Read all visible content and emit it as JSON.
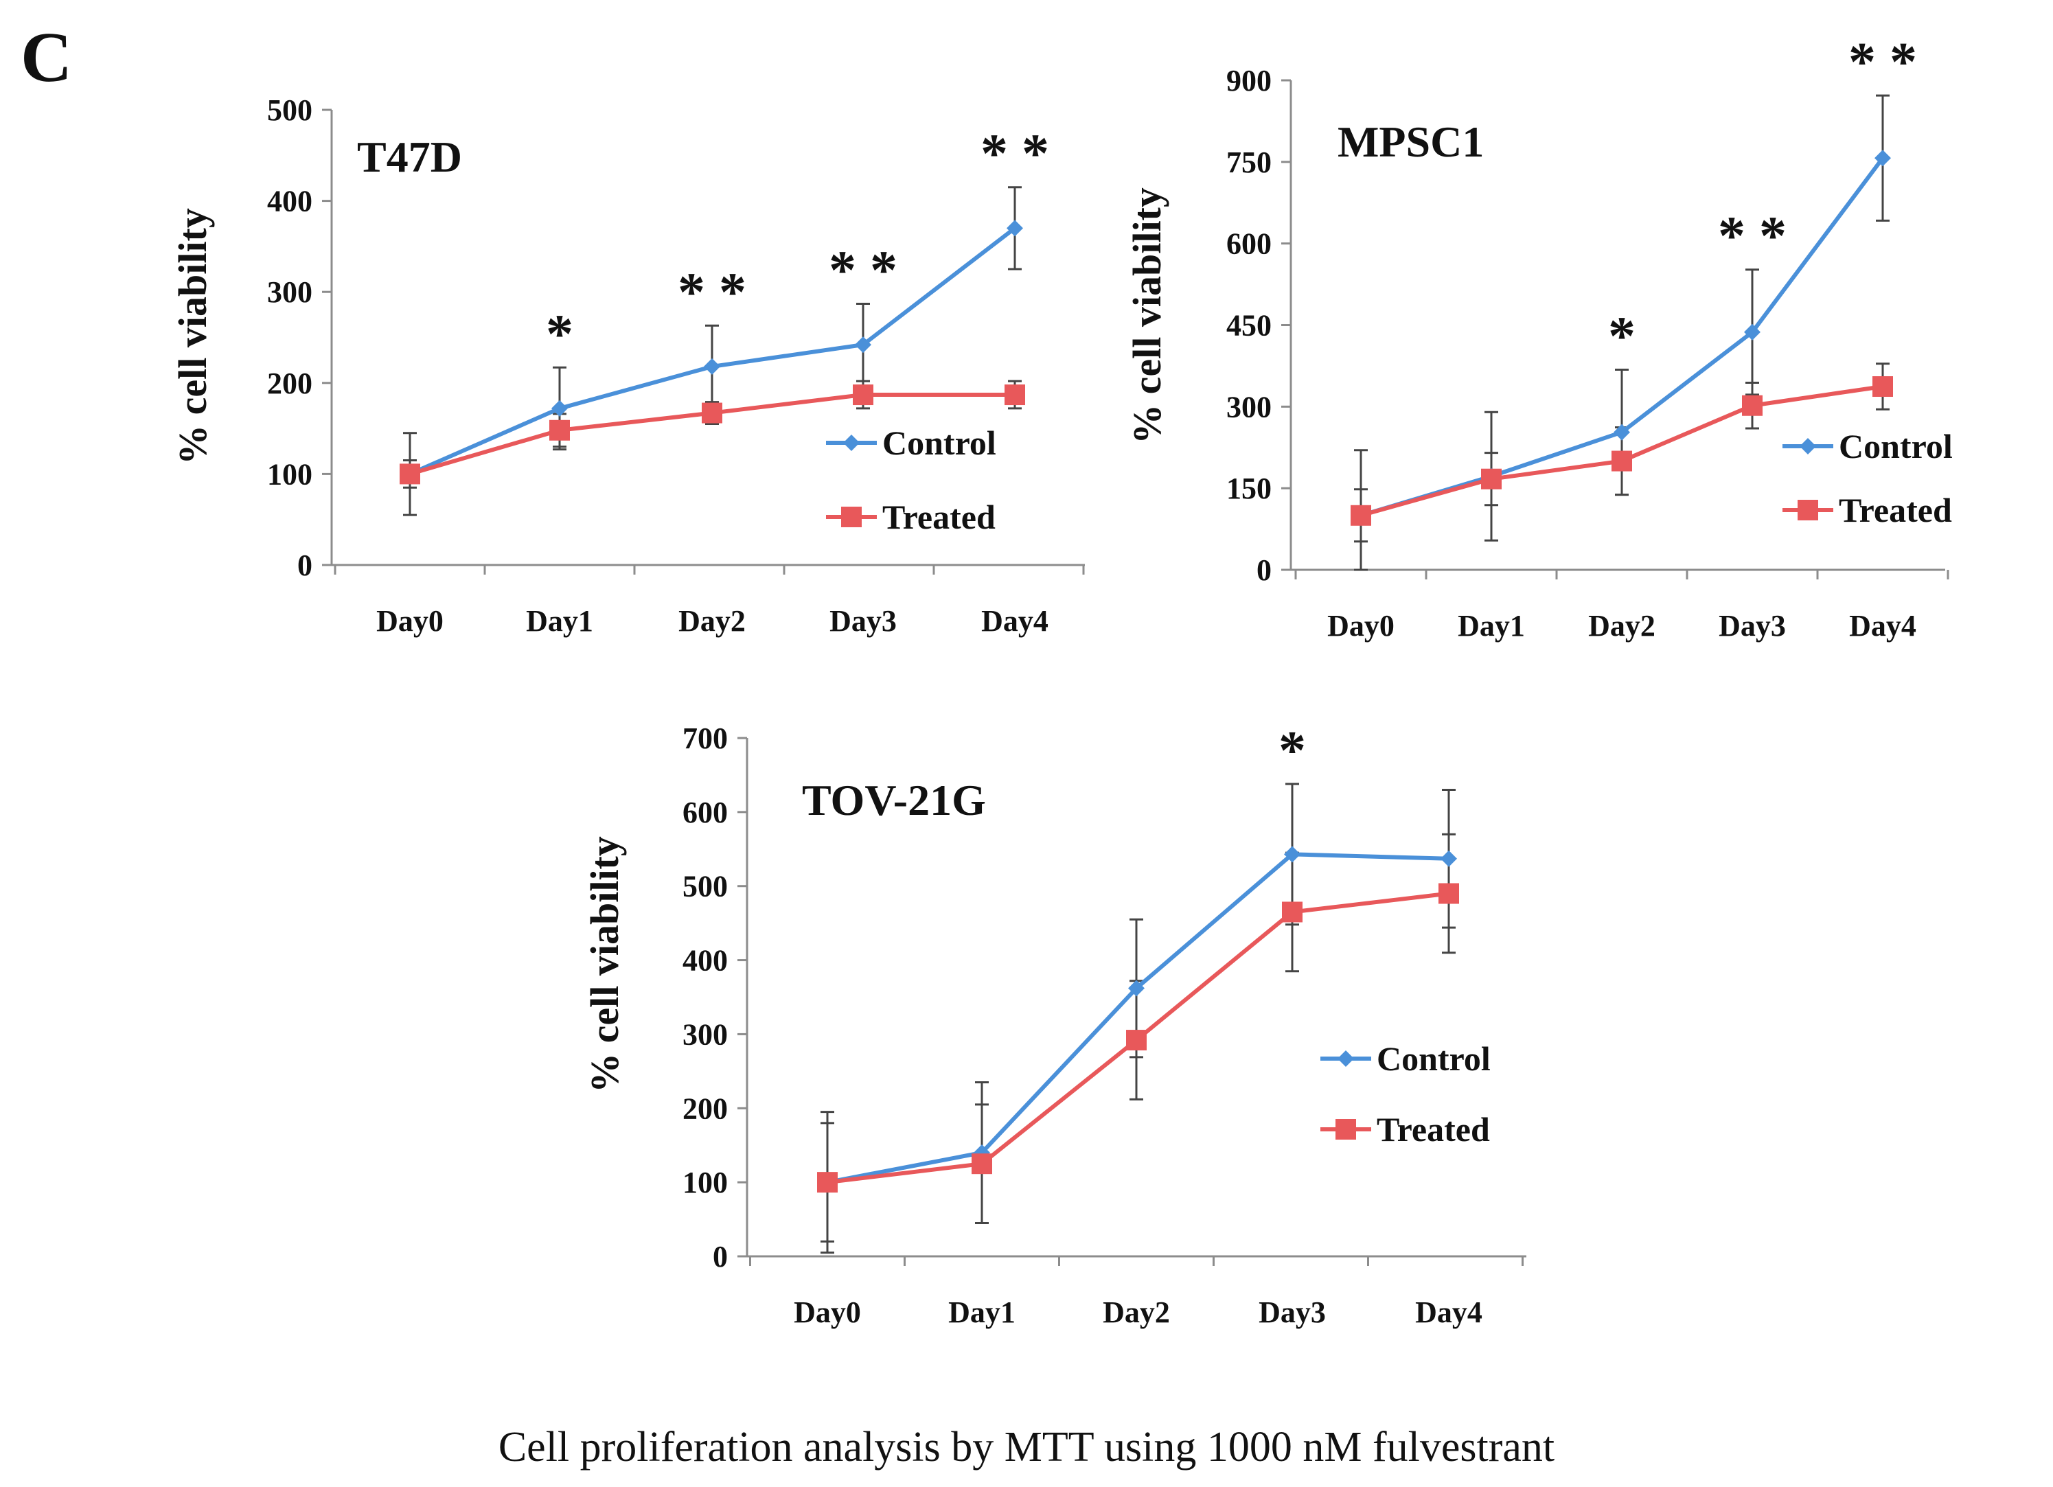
{
  "figure_label": "C",
  "caption": "Cell proliferation analysis by MTT using 1000 nM fulvestrant",
  "colors": {
    "control": "#4A90D9",
    "treated": "#E8585A",
    "axis": "#8c8c8c",
    "errorbar": "#444444",
    "text": "#111111"
  },
  "chart_data": [
    {
      "type": "line",
      "title": "T47D",
      "xlabel": "",
      "ylabel": "% cell viability",
      "categories": [
        "Day0",
        "Day1",
        "Day2",
        "Day3",
        "Day4"
      ],
      "ylim": [
        0,
        500
      ],
      "yticks": [
        0,
        100,
        200,
        300,
        400,
        500
      ],
      "ytick_labels": [
        "0",
        "100",
        "200",
        "300",
        "400",
        "500"
      ],
      "legend_position": "right",
      "series": [
        {
          "name": "Control",
          "marker": "diamond",
          "values": [
            100,
            172,
            218,
            242,
            370
          ],
          "errors": [
            45,
            45,
            45,
            45,
            45
          ]
        },
        {
          "name": "Treated",
          "marker": "square",
          "values": [
            100,
            148,
            167,
            187,
            187
          ],
          "errors": [
            15,
            18,
            12,
            15,
            15
          ]
        }
      ],
      "significance": [
        "",
        "*",
        "* *",
        "* *",
        "* *"
      ]
    },
    {
      "type": "line",
      "title": "MPSC1",
      "xlabel": "",
      "ylabel": "% cell viability",
      "categories": [
        "Day0",
        "Day1",
        "Day2",
        "Day3",
        "Day4"
      ],
      "ylim": [
        0,
        900
      ],
      "yticks": [
        0,
        150,
        300,
        450,
        600,
        750,
        900
      ],
      "ytick_labels": [
        "0",
        "150",
        "300",
        "450",
        "600",
        "750",
        "900"
      ],
      "legend_position": "right",
      "series": [
        {
          "name": "Control",
          "marker": "diamond",
          "values": [
            100,
            172,
            253,
            437,
            757
          ],
          "errors": [
            120,
            118,
            115,
            115,
            115
          ]
        },
        {
          "name": "Treated",
          "marker": "square",
          "values": [
            100,
            167,
            200,
            302,
            337
          ],
          "errors": [
            48,
            48,
            62,
            42,
            42
          ]
        }
      ],
      "significance": [
        "",
        "",
        "*",
        "* *",
        "* *"
      ]
    },
    {
      "type": "line",
      "title": "TOV-21G",
      "xlabel": "",
      "ylabel": "% cell viability",
      "categories": [
        "Day0",
        "Day1",
        "Day2",
        "Day3",
        "Day4"
      ],
      "ylim": [
        0,
        700
      ],
      "yticks": [
        0,
        100,
        200,
        300,
        400,
        500,
        600,
        700
      ],
      "ytick_labels": [
        "0",
        "100",
        "200",
        "300",
        "400",
        "500",
        "600",
        "700"
      ],
      "legend_position": "right",
      "series": [
        {
          "name": "Control",
          "marker": "diamond",
          "values": [
            100,
            140,
            362,
            543,
            537
          ],
          "errors": [
            95,
            95,
            93,
            95,
            93
          ]
        },
        {
          "name": "Treated",
          "marker": "square",
          "values": [
            100,
            125,
            292,
            465,
            490
          ],
          "errors": [
            80,
            80,
            80,
            80,
            80
          ]
        }
      ],
      "significance": [
        "",
        "",
        "",
        "*",
        ""
      ]
    }
  ]
}
